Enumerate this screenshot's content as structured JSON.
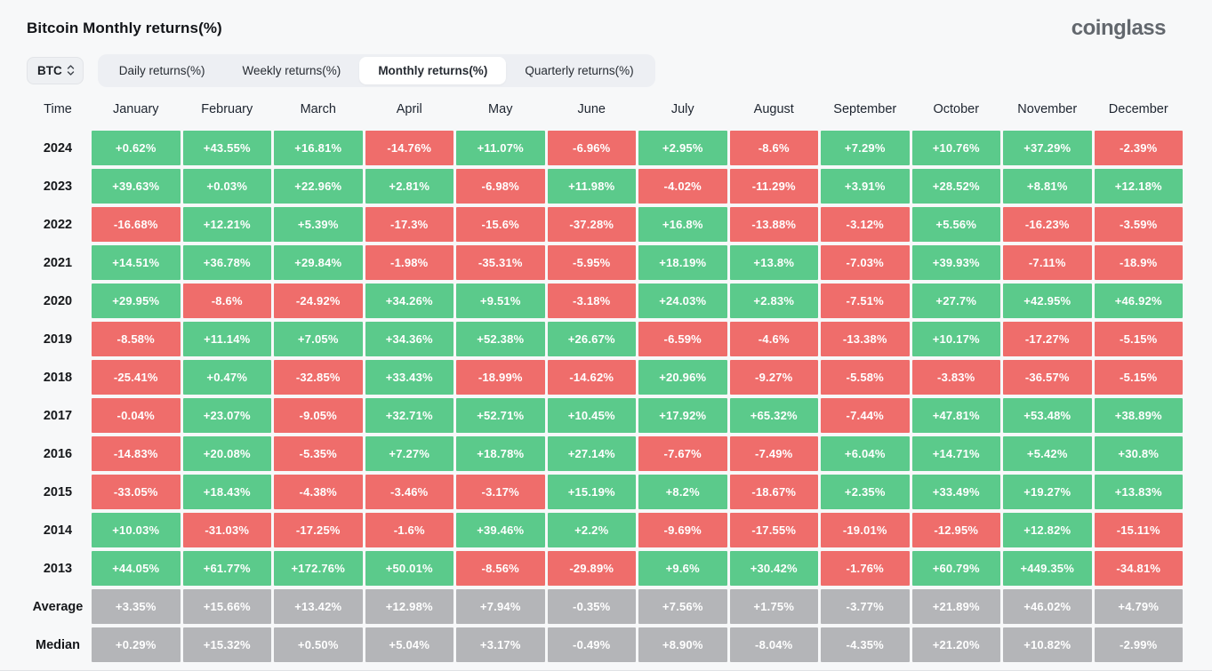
{
  "header": {
    "title": "Bitcoin Monthly returns(%)",
    "logo": "coinglass"
  },
  "controls": {
    "symbol_select": {
      "value": "BTC",
      "icon": "updown-chevron-icon"
    },
    "tabs": [
      {
        "label": "Daily returns(%)",
        "active": false
      },
      {
        "label": "Weekly returns(%)",
        "active": false
      },
      {
        "label": "Monthly returns(%)",
        "active": true
      },
      {
        "label": "Quarterly returns(%)",
        "active": false
      }
    ]
  },
  "colors": {
    "positive": "#5bca8b",
    "negative": "#ef6d6b",
    "neutral": "#b4b5b8",
    "cell_text": "#ffffff"
  },
  "chart_data": {
    "type": "heatmap",
    "title": "Bitcoin Monthly returns(%)",
    "legend_position": "none",
    "grid": false,
    "columns": [
      "Time",
      "January",
      "February",
      "March",
      "April",
      "May",
      "June",
      "July",
      "August",
      "September",
      "October",
      "November",
      "December"
    ],
    "rows": [
      {
        "label": "2024",
        "style": "signed",
        "values": [
          "+0.62%",
          "+43.55%",
          "+16.81%",
          "-14.76%",
          "+11.07%",
          "-6.96%",
          "+2.95%",
          "-8.6%",
          "+7.29%",
          "+10.76%",
          "+37.29%",
          "-2.39%"
        ]
      },
      {
        "label": "2023",
        "style": "signed",
        "values": [
          "+39.63%",
          "+0.03%",
          "+22.96%",
          "+2.81%",
          "-6.98%",
          "+11.98%",
          "-4.02%",
          "-11.29%",
          "+3.91%",
          "+28.52%",
          "+8.81%",
          "+12.18%"
        ]
      },
      {
        "label": "2022",
        "style": "signed",
        "values": [
          "-16.68%",
          "+12.21%",
          "+5.39%",
          "-17.3%",
          "-15.6%",
          "-37.28%",
          "+16.8%",
          "-13.88%",
          "-3.12%",
          "+5.56%",
          "-16.23%",
          "-3.59%"
        ]
      },
      {
        "label": "2021",
        "style": "signed",
        "values": [
          "+14.51%",
          "+36.78%",
          "+29.84%",
          "-1.98%",
          "-35.31%",
          "-5.95%",
          "+18.19%",
          "+13.8%",
          "-7.03%",
          "+39.93%",
          "-7.11%",
          "-18.9%"
        ]
      },
      {
        "label": "2020",
        "style": "signed",
        "values": [
          "+29.95%",
          "-8.6%",
          "-24.92%",
          "+34.26%",
          "+9.51%",
          "-3.18%",
          "+24.03%",
          "+2.83%",
          "-7.51%",
          "+27.7%",
          "+42.95%",
          "+46.92%"
        ]
      },
      {
        "label": "2019",
        "style": "signed",
        "values": [
          "-8.58%",
          "+11.14%",
          "+7.05%",
          "+34.36%",
          "+52.38%",
          "+26.67%",
          "-6.59%",
          "-4.6%",
          "-13.38%",
          "+10.17%",
          "-17.27%",
          "-5.15%"
        ]
      },
      {
        "label": "2018",
        "style": "signed",
        "values": [
          "-25.41%",
          "+0.47%",
          "-32.85%",
          "+33.43%",
          "-18.99%",
          "-14.62%",
          "+20.96%",
          "-9.27%",
          "-5.58%",
          "-3.83%",
          "-36.57%",
          "-5.15%"
        ]
      },
      {
        "label": "2017",
        "style": "signed",
        "values": [
          "-0.04%",
          "+23.07%",
          "-9.05%",
          "+32.71%",
          "+52.71%",
          "+10.45%",
          "+17.92%",
          "+65.32%",
          "-7.44%",
          "+47.81%",
          "+53.48%",
          "+38.89%"
        ]
      },
      {
        "label": "2016",
        "style": "signed",
        "values": [
          "-14.83%",
          "+20.08%",
          "-5.35%",
          "+7.27%",
          "+18.78%",
          "+27.14%",
          "-7.67%",
          "-7.49%",
          "+6.04%",
          "+14.71%",
          "+5.42%",
          "+30.8%"
        ]
      },
      {
        "label": "2015",
        "style": "signed",
        "values": [
          "-33.05%",
          "+18.43%",
          "-4.38%",
          "-3.46%",
          "-3.17%",
          "+15.19%",
          "+8.2%",
          "-18.67%",
          "+2.35%",
          "+33.49%",
          "+19.27%",
          "+13.83%"
        ]
      },
      {
        "label": "2014",
        "style": "signed",
        "values": [
          "+10.03%",
          "-31.03%",
          "-17.25%",
          "-1.6%",
          "+39.46%",
          "+2.2%",
          "-9.69%",
          "-17.55%",
          "-19.01%",
          "-12.95%",
          "+12.82%",
          "-15.11%"
        ]
      },
      {
        "label": "2013",
        "style": "signed",
        "values": [
          "+44.05%",
          "+61.77%",
          "+172.76%",
          "+50.01%",
          "-8.56%",
          "-29.89%",
          "+9.6%",
          "+30.42%",
          "-1.76%",
          "+60.79%",
          "+449.35%",
          "-34.81%"
        ]
      },
      {
        "label": "Average",
        "style": "neutral",
        "values": [
          "+3.35%",
          "+15.66%",
          "+13.42%",
          "+12.98%",
          "+7.94%",
          "-0.35%",
          "+7.56%",
          "+1.75%",
          "-3.77%",
          "+21.89%",
          "+46.02%",
          "+4.79%"
        ]
      },
      {
        "label": "Median",
        "style": "neutral",
        "values": [
          "+0.29%",
          "+15.32%",
          "+0.50%",
          "+5.04%",
          "+3.17%",
          "-0.49%",
          "+8.90%",
          "-8.04%",
          "-4.35%",
          "+21.20%",
          "+10.82%",
          "-2.99%"
        ]
      }
    ]
  }
}
